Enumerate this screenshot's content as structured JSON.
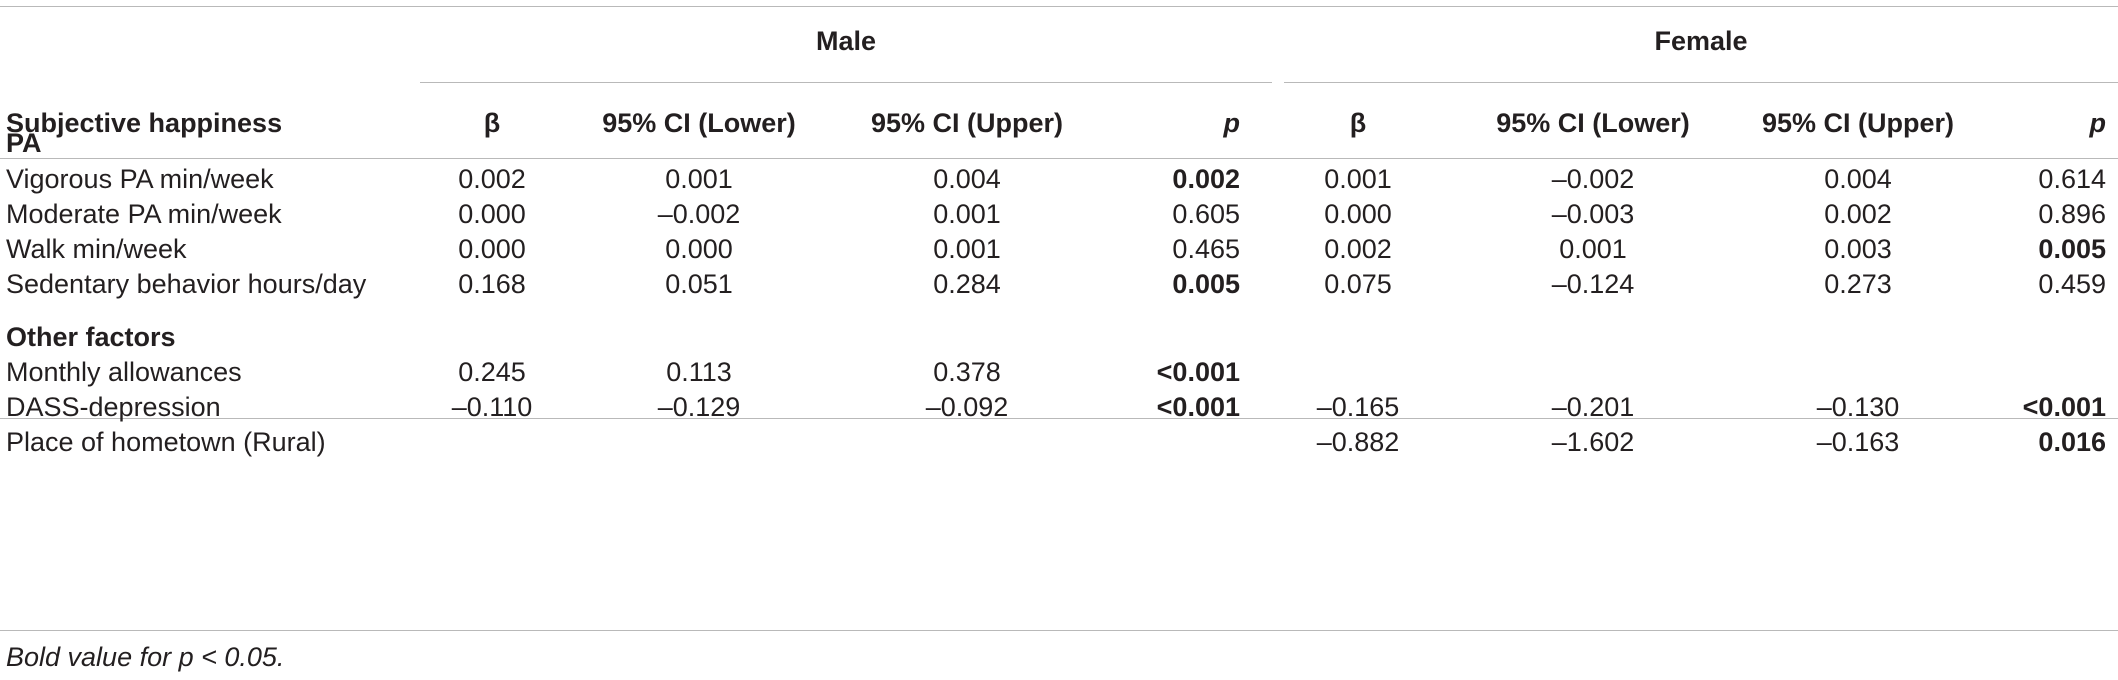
{
  "table": {
    "group_headers": [
      "Male",
      "Female"
    ],
    "row_header_label": "Subjective happiness",
    "columns": [
      "β",
      "95% CI (Lower)",
      "95% CI (Upper)",
      "p",
      "β",
      "95% CI (Lower)",
      "95% CI (Upper)",
      "p"
    ],
    "sections": [
      {
        "title": "PA",
        "rows": [
          {
            "label": "Vigorous PA min/week",
            "cells": [
              "0.002",
              "0.001",
              "0.004",
              "0.002",
              "0.001",
              "–0.002",
              "0.004",
              "0.614"
            ],
            "bold": [
              false,
              false,
              false,
              true,
              false,
              false,
              false,
              false
            ]
          },
          {
            "label": "Moderate PA min/week",
            "cells": [
              "0.000",
              "–0.002",
              "0.001",
              "0.605",
              "0.000",
              "–0.003",
              "0.002",
              "0.896"
            ],
            "bold": [
              false,
              false,
              false,
              false,
              false,
              false,
              false,
              false
            ]
          },
          {
            "label": "Walk min/week",
            "cells": [
              "0.000",
              "0.000",
              "0.001",
              "0.465",
              "0.002",
              "0.001",
              "0.003",
              "0.005"
            ],
            "bold": [
              false,
              false,
              false,
              false,
              false,
              false,
              false,
              true
            ]
          },
          {
            "label": "Sedentary behavior hours/day",
            "cells": [
              "0.168",
              "0.051",
              "0.284",
              "0.005",
              "0.075",
              "–0.124",
              "0.273",
              "0.459"
            ],
            "bold": [
              false,
              false,
              false,
              true,
              false,
              false,
              false,
              false
            ]
          }
        ]
      },
      {
        "title": "Other factors",
        "rows": [
          {
            "label": "Monthly allowances",
            "cells": [
              "0.245",
              "0.113",
              "0.378",
              "<0.001",
              "",
              "",
              "",
              ""
            ],
            "bold": [
              false,
              false,
              false,
              true,
              false,
              false,
              false,
              false
            ]
          },
          {
            "label": "DASS-depression",
            "cells": [
              "–0.110",
              "–0.129",
              "–0.092",
              "<0.001",
              "–0.165",
              "–0.201",
              "–0.130",
              "<0.001"
            ],
            "bold": [
              false,
              false,
              false,
              true,
              false,
              false,
              false,
              true
            ]
          },
          {
            "label": "Place of hometown (Rural)",
            "cells": [
              "",
              "",
              "",
              "",
              "–0.882",
              "–1.602",
              "–0.163",
              "0.016"
            ],
            "bold": [
              false,
              false,
              false,
              false,
              false,
              false,
              false,
              true
            ]
          }
        ]
      }
    ],
    "footnote": "Bold value for p < 0.05."
  }
}
